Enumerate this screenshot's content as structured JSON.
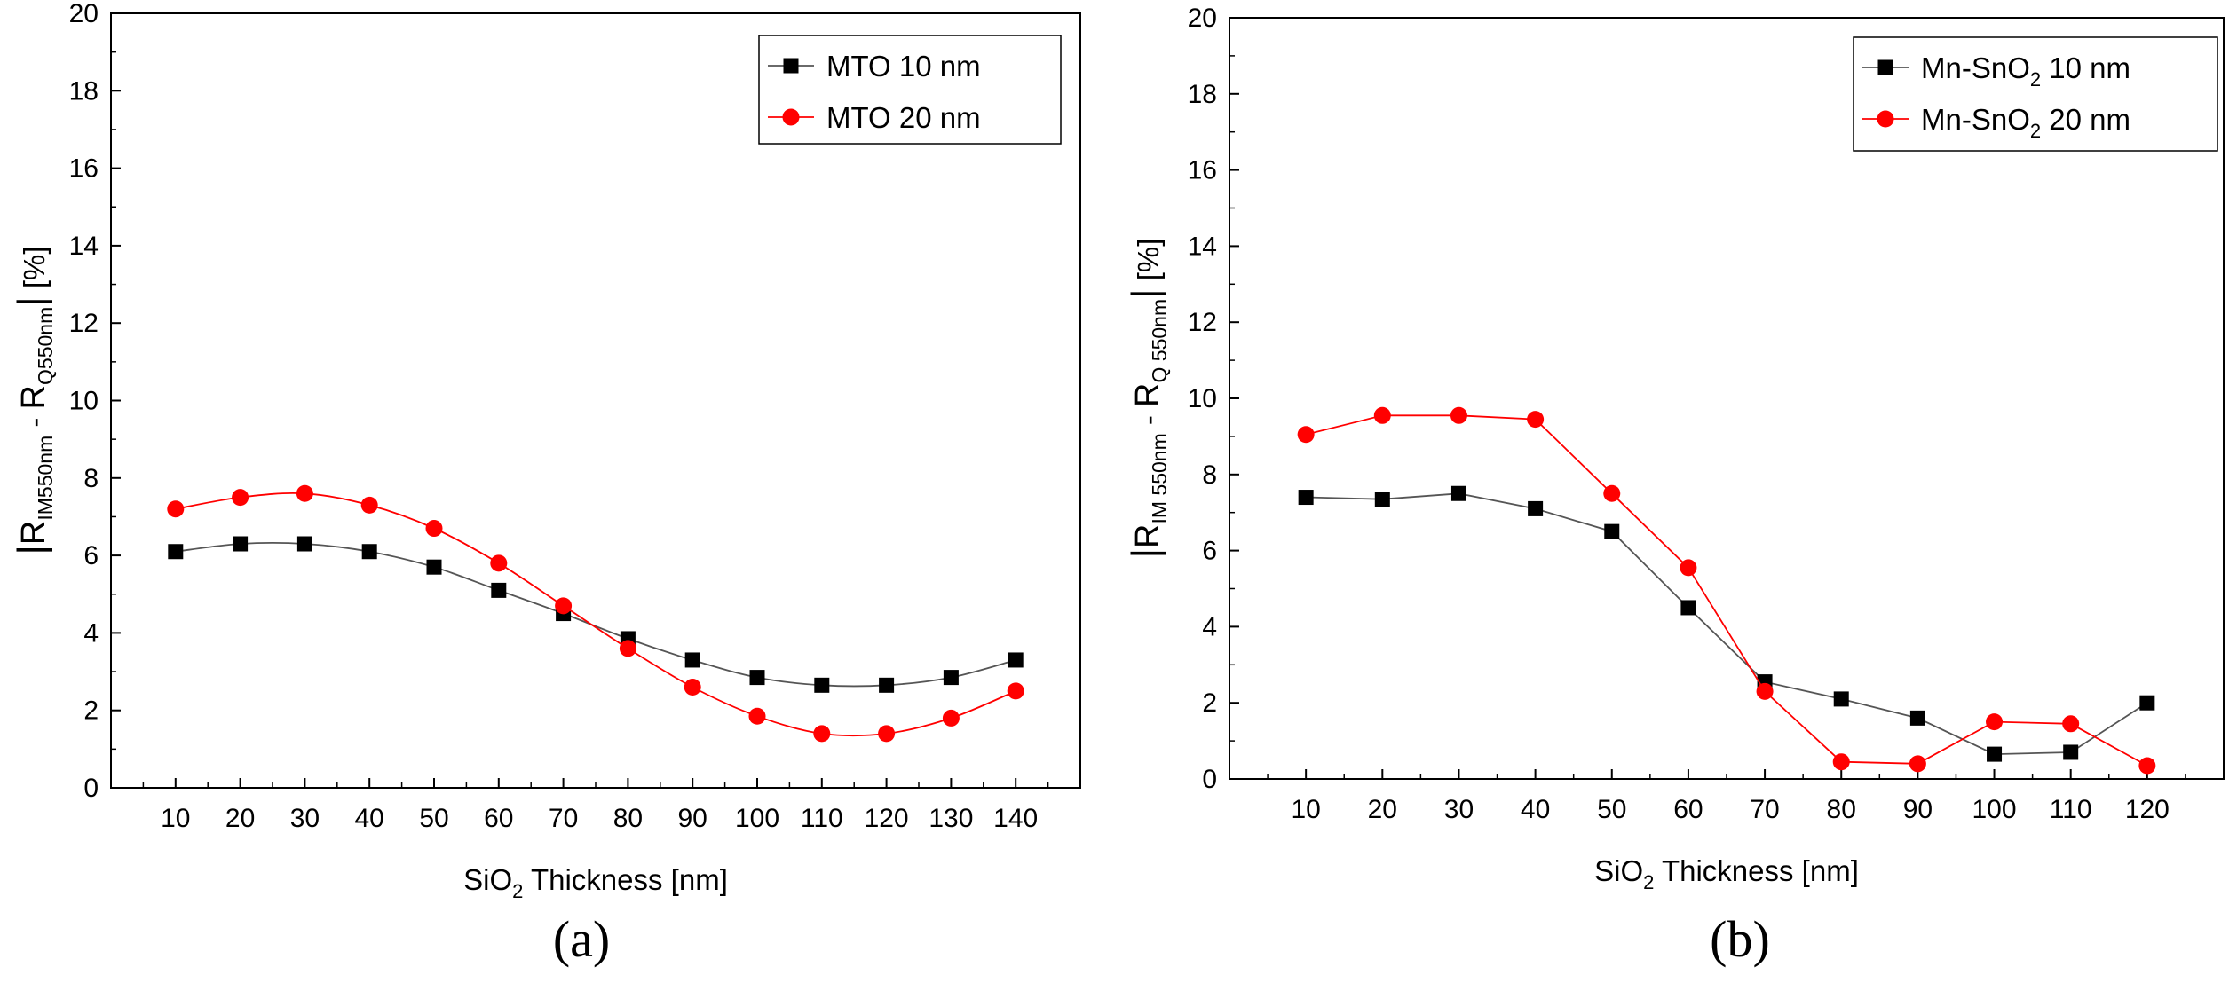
{
  "chart_data": [
    {
      "type": "line",
      "panel_label": "(a)",
      "xlabel": {
        "pre": "SiO",
        "sub": "2",
        "post": " Thickness [nm]"
      },
      "ylabel": {
        "bar_left": "|",
        "r1": "R",
        "r1_sub": "IM550nm",
        "minus": " - ",
        "r2": "R",
        "r2_sub": "Q550nm",
        "bar_right": "|",
        "unit": " [%]"
      },
      "xlim": [
        0,
        150
      ],
      "ylim": [
        0,
        20
      ],
      "x_ticks": [
        10,
        20,
        30,
        40,
        50,
        60,
        70,
        80,
        90,
        100,
        110,
        120,
        130,
        140
      ],
      "y_ticks": [
        0,
        2,
        4,
        6,
        8,
        10,
        12,
        14,
        16,
        18,
        20
      ],
      "legend_position": "top-right",
      "grid": false,
      "smooth": true,
      "series": [
        {
          "name": "MTO 10 nm",
          "name_parts": {
            "pre": "MTO 10 nm",
            "sub": "",
            "post": ""
          },
          "marker": "square",
          "color": "#000000",
          "line_color": "#555555",
          "x": [
            10,
            20,
            30,
            40,
            50,
            60,
            70,
            80,
            90,
            100,
            110,
            120,
            130,
            140
          ],
          "values": [
            6.1,
            6.3,
            6.3,
            6.1,
            5.7,
            5.1,
            4.5,
            3.85,
            3.3,
            2.85,
            2.65,
            2.65,
            2.85,
            3.3
          ]
        },
        {
          "name": "MTO 20 nm",
          "name_parts": {
            "pre": "MTO 20 nm",
            "sub": "",
            "post": ""
          },
          "marker": "circle",
          "color": "#ff0000",
          "line_color": "#ff0000",
          "x": [
            10,
            20,
            30,
            40,
            50,
            60,
            70,
            80,
            90,
            100,
            110,
            120,
            130,
            140
          ],
          "values": [
            7.2,
            7.5,
            7.6,
            7.3,
            6.7,
            5.8,
            4.7,
            3.6,
            2.6,
            1.85,
            1.4,
            1.4,
            1.8,
            2.5
          ]
        }
      ]
    },
    {
      "type": "line",
      "panel_label": "(b)",
      "xlabel": {
        "pre": "SiO",
        "sub": "2",
        "post": " Thickness [nm]"
      },
      "ylabel": {
        "bar_left": "|",
        "r1": "R",
        "r1_sub": "IM 550nm",
        "minus": " - ",
        "r2": "R",
        "r2_sub": "Q 550nm",
        "bar_right": "|",
        "unit": " [%]"
      },
      "xlim": [
        0,
        130
      ],
      "ylim": [
        0,
        20
      ],
      "x_ticks": [
        10,
        20,
        30,
        40,
        50,
        60,
        70,
        80,
        90,
        100,
        110,
        120
      ],
      "y_ticks": [
        0,
        2,
        4,
        6,
        8,
        10,
        12,
        14,
        16,
        18,
        20
      ],
      "legend_position": "top-right",
      "grid": false,
      "smooth": false,
      "series": [
        {
          "name": "Mn-SnO2 10 nm",
          "name_parts": {
            "pre": "Mn-SnO",
            "sub": "2",
            "post": " 10 nm"
          },
          "marker": "square",
          "color": "#000000",
          "line_color": "#555555",
          "x": [
            10,
            20,
            30,
            40,
            50,
            60,
            70,
            80,
            90,
            100,
            110,
            120
          ],
          "values": [
            7.4,
            7.35,
            7.5,
            7.1,
            6.5,
            4.5,
            2.55,
            2.1,
            1.6,
            0.65,
            0.7,
            2.0
          ]
        },
        {
          "name": "Mn-SnO2 20 nm",
          "name_parts": {
            "pre": "Mn-SnO",
            "sub": "2",
            "post": " 20 nm"
          },
          "marker": "circle",
          "color": "#ff0000",
          "line_color": "#ff0000",
          "x": [
            10,
            20,
            30,
            40,
            50,
            60,
            70,
            80,
            90,
            100,
            110,
            120
          ],
          "values": [
            9.05,
            9.55,
            9.55,
            9.45,
            7.5,
            5.55,
            2.3,
            0.45,
            0.4,
            1.5,
            1.45,
            0.35
          ]
        }
      ]
    }
  ]
}
